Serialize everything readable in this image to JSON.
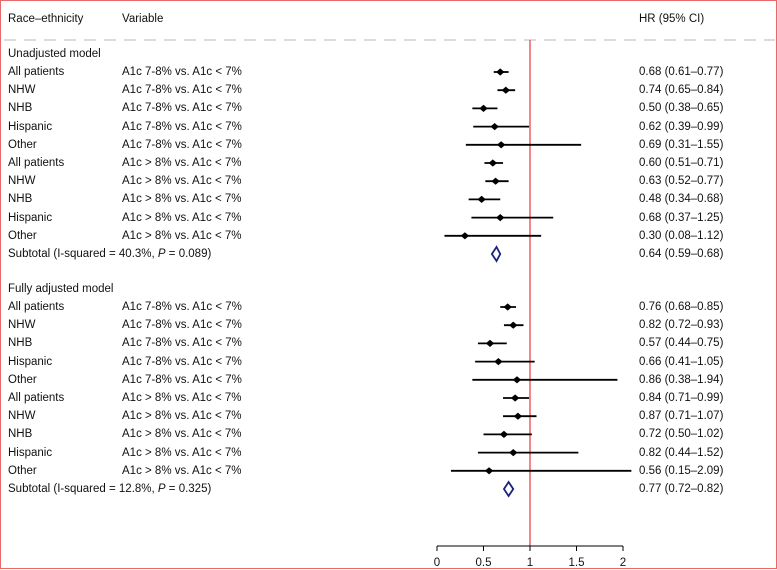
{
  "chart_data": {
    "type": "forest",
    "header": {
      "group": "Race–ethnicity",
      "variable": "Variable",
      "estimate": "HR (95% CI)"
    },
    "reference_line": 1,
    "xaxis": {
      "min": 0,
      "max": 2,
      "ticks": [
        0,
        0.5,
        1,
        1.5,
        2
      ],
      "tick_labels": [
        "0",
        "0.5",
        "1",
        "1.5",
        "2"
      ]
    },
    "sections": [
      {
        "title": "Unadjusted model",
        "rows": [
          {
            "group": "All patients",
            "variable": "A1c 7-8% vs. A1c < 7%",
            "hr": 0.68,
            "lo": 0.61,
            "hi": 0.77,
            "text": "0.68 (0.61–0.77)"
          },
          {
            "group": "NHW",
            "variable": "A1c 7-8% vs. A1c < 7%",
            "hr": 0.74,
            "lo": 0.65,
            "hi": 0.84,
            "text": "0.74 (0.65–0.84)"
          },
          {
            "group": "NHB",
            "variable": "A1c 7-8% vs. A1c < 7%",
            "hr": 0.5,
            "lo": 0.38,
            "hi": 0.65,
            "text": "0.50 (0.38–0.65)"
          },
          {
            "group": "Hispanic",
            "variable": "A1c 7-8% vs. A1c < 7%",
            "hr": 0.62,
            "lo": 0.39,
            "hi": 0.99,
            "text": "0.62 (0.39–0.99)"
          },
          {
            "group": "Other",
            "variable": "A1c 7-8% vs. A1c < 7%",
            "hr": 0.69,
            "lo": 0.31,
            "hi": 1.55,
            "text": "0.69 (0.31–1.55)"
          },
          {
            "group": "All patients",
            "variable": "A1c > 8% vs. A1c < 7%",
            "hr": 0.6,
            "lo": 0.51,
            "hi": 0.71,
            "text": "0.60 (0.51–0.71)"
          },
          {
            "group": "NHW",
            "variable": "A1c > 8% vs. A1c < 7%",
            "hr": 0.63,
            "lo": 0.52,
            "hi": 0.77,
            "text": "0.63 (0.52–0.77)"
          },
          {
            "group": "NHB",
            "variable": "A1c > 8% vs. A1c < 7%",
            "hr": 0.48,
            "lo": 0.34,
            "hi": 0.68,
            "text": "0.48 (0.34–0.68)"
          },
          {
            "group": "Hispanic",
            "variable": "A1c > 8% vs. A1c < 7%",
            "hr": 0.68,
            "lo": 0.37,
            "hi": 1.25,
            "text": "0.68 (0.37–1.25)"
          },
          {
            "group": "Other",
            "variable": "A1c > 8% vs. A1c < 7%",
            "hr": 0.3,
            "lo": 0.08,
            "hi": 1.12,
            "text": "0.30 (0.08–1.12)"
          }
        ],
        "subtotal": {
          "label": "Subtotal (I-squared = 40.3%, ",
          "p_label": "P",
          "p_value": " = 0.089)",
          "hr": 0.64,
          "lo": 0.59,
          "hi": 0.68,
          "text": "0.64 (0.59–0.68)"
        }
      },
      {
        "title": "Fully adjusted model",
        "rows": [
          {
            "group": "All patients",
            "variable": "A1c 7-8% vs. A1c < 7%",
            "hr": 0.76,
            "lo": 0.68,
            "hi": 0.85,
            "text": "0.76 (0.68–0.85)"
          },
          {
            "group": "NHW",
            "variable": "A1c 7-8% vs. A1c < 7%",
            "hr": 0.82,
            "lo": 0.72,
            "hi": 0.93,
            "text": "0.82 (0.72–0.93)"
          },
          {
            "group": "NHB",
            "variable": "A1c 7-8% vs. A1c < 7%",
            "hr": 0.57,
            "lo": 0.44,
            "hi": 0.75,
            "text": "0.57 (0.44–0.75)"
          },
          {
            "group": "Hispanic",
            "variable": "A1c 7-8% vs. A1c < 7%",
            "hr": 0.66,
            "lo": 0.41,
            "hi": 1.05,
            "text": "0.66 (0.41–1.05)"
          },
          {
            "group": "Other",
            "variable": "A1c 7-8% vs. A1c < 7%",
            "hr": 0.86,
            "lo": 0.38,
            "hi": 1.94,
            "text": "0.86 (0.38–1.94)"
          },
          {
            "group": "All patients",
            "variable": "A1c > 8% vs. A1c < 7%",
            "hr": 0.84,
            "lo": 0.71,
            "hi": 0.99,
            "text": "0.84 (0.71–0.99)"
          },
          {
            "group": "NHW",
            "variable": "A1c > 8% vs. A1c < 7%",
            "hr": 0.87,
            "lo": 0.71,
            "hi": 1.07,
            "text": "0.87 (0.71–1.07)"
          },
          {
            "group": "NHB",
            "variable": "A1c > 8% vs. A1c < 7%",
            "hr": 0.72,
            "lo": 0.5,
            "hi": 1.02,
            "text": "0.72 (0.50–1.02)"
          },
          {
            "group": "Hispanic",
            "variable": "A1c > 8% vs. A1c < 7%",
            "hr": 0.82,
            "lo": 0.44,
            "hi": 1.52,
            "text": "0.82 (0.44–1.52)"
          },
          {
            "group": "Other",
            "variable": "A1c > 8% vs. A1c < 7%",
            "hr": 0.56,
            "lo": 0.15,
            "hi": 2.09,
            "text": "0.56 (0.15–2.09)"
          }
        ],
        "subtotal": {
          "label": "Subtotal (I-squared = 12.8%, ",
          "p_label": "P",
          "p_value": " = 0.325)",
          "hr": 0.77,
          "lo": 0.72,
          "hi": 0.82,
          "text": "0.77 (0.72–0.82)"
        }
      }
    ]
  },
  "colors": {
    "reference_line": "#e8484c",
    "border": "#e8686a",
    "diamond": "#1a237e",
    "grid_dash": "#d0d0d0",
    "marker": "#000000"
  }
}
